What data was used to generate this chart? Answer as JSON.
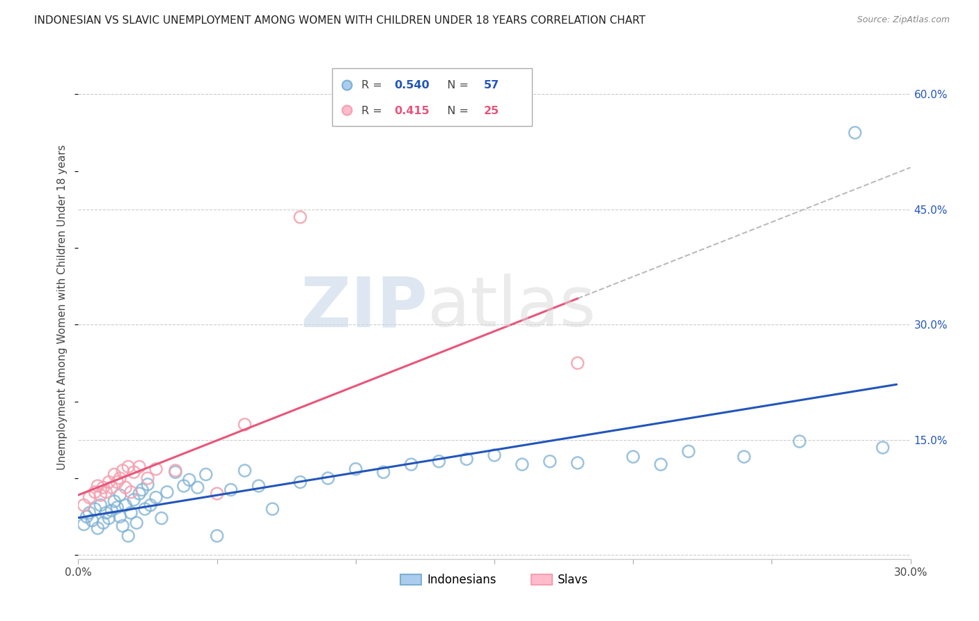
{
  "title": "INDONESIAN VS SLAVIC UNEMPLOYMENT AMONG WOMEN WITH CHILDREN UNDER 18 YEARS CORRELATION CHART",
  "source": "Source: ZipAtlas.com",
  "ylabel": "Unemployment Among Women with Children Under 18 years",
  "xlim": [
    0.0,
    0.3
  ],
  "ylim": [
    -0.005,
    0.65
  ],
  "yticks_right": [
    0.0,
    0.15,
    0.3,
    0.45,
    0.6
  ],
  "yticklabels_right": [
    "",
    "15.0%",
    "30.0%",
    "45.0%",
    "60.0%"
  ],
  "indo_color": "#7BAFD4",
  "slav_color": "#F4A0B0",
  "indo_line_color": "#2255BB",
  "slav_line_color": "#E8557A",
  "dash_color": "#BBBBBB",
  "indo_R": "0.540",
  "indo_N": "57",
  "slav_R": "0.415",
  "slav_N": "25",
  "watermark_zip": "ZIP",
  "watermark_atlas": "atlas",
  "indo_x": [
    0.002,
    0.003,
    0.004,
    0.005,
    0.006,
    0.007,
    0.008,
    0.009,
    0.01,
    0.011,
    0.012,
    0.013,
    0.014,
    0.015,
    0.015,
    0.016,
    0.017,
    0.018,
    0.019,
    0.02,
    0.021,
    0.022,
    0.023,
    0.024,
    0.025,
    0.026,
    0.028,
    0.03,
    0.032,
    0.035,
    0.038,
    0.04,
    0.043,
    0.046,
    0.05,
    0.055,
    0.06,
    0.065,
    0.07,
    0.08,
    0.09,
    0.1,
    0.11,
    0.12,
    0.13,
    0.14,
    0.15,
    0.16,
    0.17,
    0.18,
    0.2,
    0.21,
    0.22,
    0.24,
    0.26,
    0.28,
    0.29
  ],
  "indo_y": [
    0.04,
    0.05,
    0.055,
    0.045,
    0.06,
    0.035,
    0.065,
    0.042,
    0.055,
    0.048,
    0.058,
    0.07,
    0.062,
    0.05,
    0.078,
    0.038,
    0.065,
    0.025,
    0.055,
    0.072,
    0.042,
    0.08,
    0.085,
    0.06,
    0.092,
    0.065,
    0.075,
    0.048,
    0.082,
    0.108,
    0.09,
    0.098,
    0.088,
    0.105,
    0.025,
    0.085,
    0.11,
    0.09,
    0.06,
    0.095,
    0.1,
    0.112,
    0.108,
    0.118,
    0.122,
    0.125,
    0.13,
    0.118,
    0.122,
    0.12,
    0.128,
    0.118,
    0.135,
    0.128,
    0.148,
    0.55,
    0.14
  ],
  "slav_x": [
    0.002,
    0.004,
    0.006,
    0.007,
    0.008,
    0.009,
    0.01,
    0.011,
    0.012,
    0.013,
    0.014,
    0.015,
    0.016,
    0.017,
    0.018,
    0.019,
    0.02,
    0.022,
    0.025,
    0.028,
    0.035,
    0.05,
    0.06,
    0.08,
    0.18
  ],
  "slav_y": [
    0.065,
    0.075,
    0.082,
    0.09,
    0.078,
    0.088,
    0.082,
    0.095,
    0.088,
    0.105,
    0.095,
    0.1,
    0.11,
    0.088,
    0.115,
    0.082,
    0.108,
    0.115,
    0.1,
    0.112,
    0.11,
    0.08,
    0.17,
    0.44,
    0.25
  ]
}
